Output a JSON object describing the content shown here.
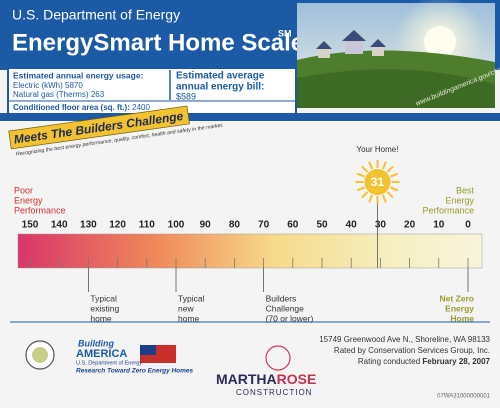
{
  "header": {
    "agency": "U.S. Department of Energy",
    "title": "EnergySmart Home Scale",
    "title_mark": "SM",
    "url": "www.buildingamerica.gov/challenge"
  },
  "usage": {
    "heading": "Estimated annual energy usage:",
    "items": [
      {
        "label": "Electric (kWh)",
        "value": 5870
      },
      {
        "label": "Natural gas (Therms)",
        "value": 263
      }
    ],
    "bill_heading": [
      "Estimated average",
      "annual energy bill:"
    ],
    "bill": "$589",
    "area_label": "Conditioned floor area (sq. ft.):",
    "area": 2400
  },
  "banner": {
    "title": "Meets The Builders Challenge",
    "subtitle": "Recognizing the best energy performance, quality, comfort, health and safety in the market."
  },
  "scale": {
    "ticks": [
      150,
      140,
      130,
      120,
      110,
      100,
      90,
      80,
      70,
      60,
      50,
      40,
      30,
      20,
      10,
      0
    ],
    "poor": [
      "Poor",
      "Energy",
      "Performance"
    ],
    "best": [
      "Best",
      "Energy",
      "Performance"
    ],
    "your_home": "Your Home!",
    "score": 31,
    "markers": [
      {
        "value": 130,
        "lines": [
          "Typical",
          "existing",
          "home"
        ]
      },
      {
        "value": 100,
        "lines": [
          "Typical",
          "new",
          "home"
        ]
      },
      {
        "value": 70,
        "lines": [
          "Builders",
          "Challenge",
          "(70 or lower)"
        ]
      },
      {
        "value": 0,
        "lines": [
          "Net Zero",
          "Energy",
          "Home"
        ]
      }
    ]
  },
  "footer": {
    "address": "15749 Greenwood Ave N., Shoreline, WA 98133",
    "rater": "Rated by Conservation Services Group, Inc.",
    "rating_label": "Rating conducted",
    "rating_date": "February 28, 2007",
    "id": "07WA31000000001",
    "logo1": [
      "Building",
      "AMERICA",
      "U.S. Department of Energy",
      "Research Toward Zero Energy Homes"
    ],
    "logo2": [
      "MARTHA",
      "ROSE",
      "CONSTRUCTION"
    ]
  }
}
